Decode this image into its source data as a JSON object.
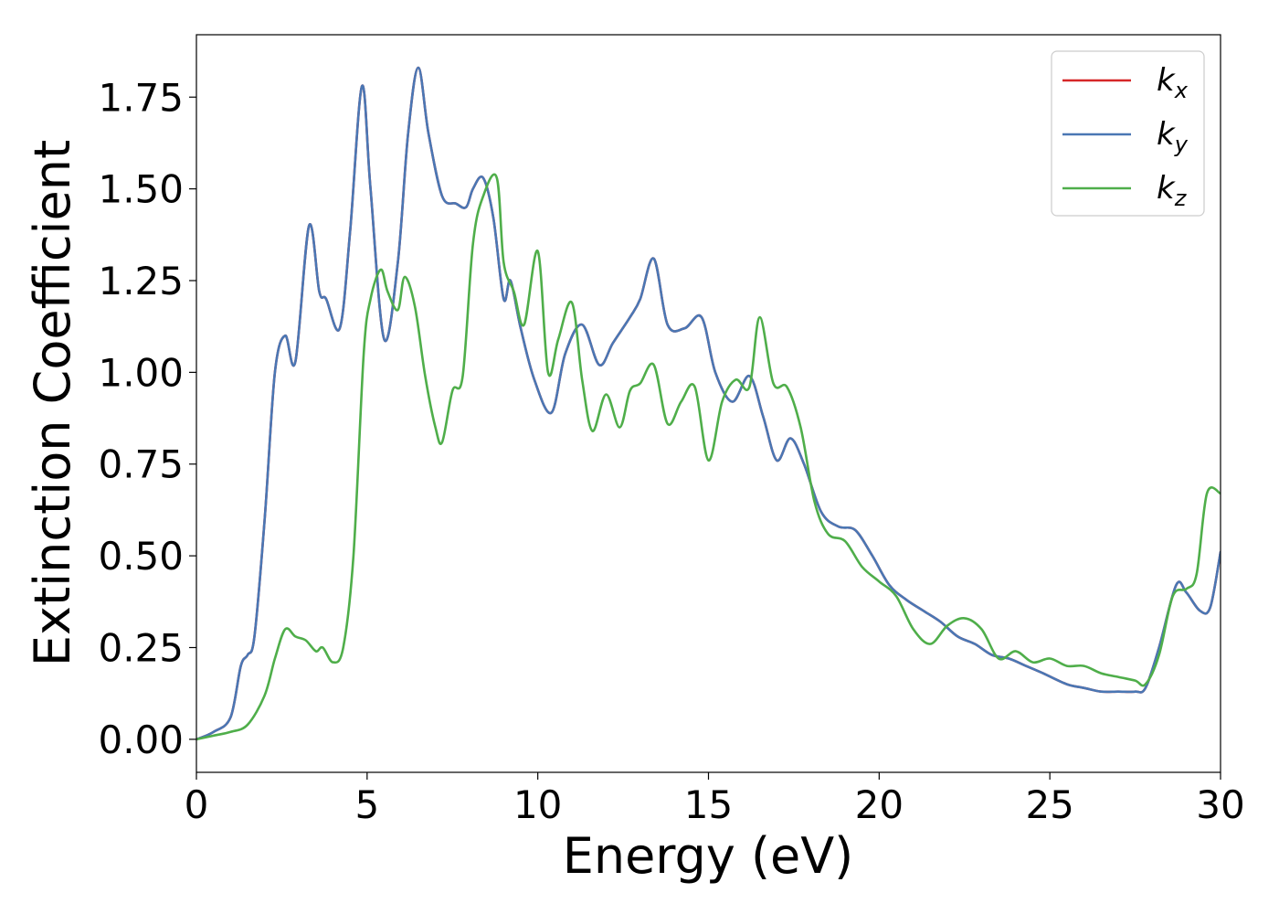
{
  "chart_data": {
    "type": "line",
    "title": "",
    "xlabel": "Energy (eV)",
    "ylabel": "Extinction Coefficient",
    "xlim": [
      0,
      30
    ],
    "ylim": [
      -0.09,
      1.92
    ],
    "xticks": [
      0,
      5,
      10,
      15,
      20,
      25,
      30
    ],
    "xtick_labels": [
      "0",
      "5",
      "10",
      "15",
      "20",
      "25",
      "30"
    ],
    "yticks": [
      0.0,
      0.25,
      0.5,
      0.75,
      1.0,
      1.25,
      1.5,
      1.75
    ],
    "ytick_labels": [
      "0.00",
      "0.25",
      "0.50",
      "0.75",
      "1.00",
      "1.25",
      "1.50",
      "1.75"
    ],
    "grid": false,
    "legend_position": "top-right",
    "series": [
      {
        "name": "kx",
        "label_main": "k",
        "label_sub": "x",
        "color": "#d62728",
        "x": [
          0,
          0.5,
          1.0,
          1.3,
          1.5,
          1.7,
          2.0,
          2.3,
          2.6,
          2.9,
          3.3,
          3.6,
          3.8,
          4.2,
          4.5,
          4.85,
          5.1,
          5.5,
          5.9,
          6.2,
          6.5,
          6.8,
          7.2,
          7.6,
          7.9,
          8.1,
          8.4,
          8.7,
          9.0,
          9.2,
          9.5,
          9.9,
          10.4,
          10.8,
          11.3,
          11.8,
          12.2,
          12.7,
          13.0,
          13.4,
          13.8,
          14.3,
          14.8,
          15.2,
          15.7,
          16.2,
          16.6,
          17.0,
          17.4,
          17.8,
          18.3,
          18.8,
          19.3,
          19.8,
          20.3,
          20.8,
          21.3,
          21.8,
          22.3,
          22.8,
          23.3,
          23.8,
          24.3,
          24.8,
          25.5,
          26.0,
          26.5,
          27.0,
          27.5,
          27.8,
          28.2,
          28.7,
          29.0,
          29.4,
          29.7,
          30.0
        ],
        "values": [
          0.0,
          0.02,
          0.06,
          0.2,
          0.23,
          0.28,
          0.6,
          1.0,
          1.1,
          1.03,
          1.4,
          1.22,
          1.2,
          1.12,
          1.38,
          1.78,
          1.5,
          1.09,
          1.3,
          1.65,
          1.83,
          1.65,
          1.48,
          1.46,
          1.45,
          1.5,
          1.53,
          1.42,
          1.2,
          1.25,
          1.12,
          0.98,
          0.89,
          1.05,
          1.13,
          1.02,
          1.08,
          1.15,
          1.2,
          1.31,
          1.13,
          1.12,
          1.15,
          1.0,
          0.92,
          0.99,
          0.88,
          0.76,
          0.82,
          0.75,
          0.62,
          0.58,
          0.57,
          0.5,
          0.42,
          0.38,
          0.35,
          0.32,
          0.28,
          0.26,
          0.23,
          0.22,
          0.2,
          0.18,
          0.15,
          0.14,
          0.13,
          0.13,
          0.13,
          0.14,
          0.25,
          0.42,
          0.4,
          0.35,
          0.36,
          0.51
        ]
      },
      {
        "name": "ky",
        "label_main": "k",
        "label_sub": "y",
        "color": "#4a77b4",
        "x": [
          0,
          0.5,
          1.0,
          1.3,
          1.5,
          1.7,
          2.0,
          2.3,
          2.6,
          2.9,
          3.3,
          3.6,
          3.8,
          4.2,
          4.5,
          4.85,
          5.1,
          5.5,
          5.9,
          6.2,
          6.5,
          6.8,
          7.2,
          7.6,
          7.9,
          8.1,
          8.4,
          8.7,
          9.0,
          9.2,
          9.5,
          9.9,
          10.4,
          10.8,
          11.3,
          11.8,
          12.2,
          12.7,
          13.0,
          13.4,
          13.8,
          14.3,
          14.8,
          15.2,
          15.7,
          16.2,
          16.6,
          17.0,
          17.4,
          17.8,
          18.3,
          18.8,
          19.3,
          19.8,
          20.3,
          20.8,
          21.3,
          21.8,
          22.3,
          22.8,
          23.3,
          23.8,
          24.3,
          24.8,
          25.5,
          26.0,
          26.5,
          27.0,
          27.5,
          27.8,
          28.2,
          28.7,
          29.0,
          29.4,
          29.7,
          30.0
        ],
        "values": [
          0.0,
          0.02,
          0.06,
          0.2,
          0.23,
          0.28,
          0.6,
          1.0,
          1.1,
          1.03,
          1.4,
          1.22,
          1.2,
          1.12,
          1.38,
          1.78,
          1.5,
          1.09,
          1.3,
          1.65,
          1.83,
          1.65,
          1.48,
          1.46,
          1.45,
          1.5,
          1.53,
          1.42,
          1.2,
          1.25,
          1.12,
          0.98,
          0.89,
          1.05,
          1.13,
          1.02,
          1.08,
          1.15,
          1.2,
          1.31,
          1.13,
          1.12,
          1.15,
          1.0,
          0.92,
          0.99,
          0.88,
          0.76,
          0.82,
          0.75,
          0.62,
          0.58,
          0.57,
          0.5,
          0.42,
          0.38,
          0.35,
          0.32,
          0.28,
          0.26,
          0.23,
          0.22,
          0.2,
          0.18,
          0.15,
          0.14,
          0.13,
          0.13,
          0.13,
          0.14,
          0.25,
          0.42,
          0.4,
          0.35,
          0.36,
          0.51
        ]
      },
      {
        "name": "kz",
        "label_main": "k",
        "label_sub": "z",
        "color": "#4fae4a",
        "x": [
          0,
          0.5,
          1.0,
          1.5,
          2.0,
          2.3,
          2.6,
          2.9,
          3.2,
          3.5,
          3.7,
          4.0,
          4.3,
          4.6,
          4.9,
          5.1,
          5.4,
          5.6,
          5.9,
          6.1,
          6.4,
          6.7,
          7.0,
          7.2,
          7.5,
          7.8,
          8.1,
          8.4,
          8.8,
          9.0,
          9.3,
          9.6,
          10.0,
          10.3,
          10.6,
          11.0,
          11.3,
          11.6,
          12.0,
          12.4,
          12.7,
          13.0,
          13.4,
          13.8,
          14.2,
          14.6,
          15.0,
          15.4,
          15.8,
          16.2,
          16.5,
          16.9,
          17.3,
          17.7,
          18.1,
          18.5,
          19.0,
          19.5,
          20.0,
          20.5,
          21.0,
          21.5,
          22.0,
          22.5,
          23.0,
          23.5,
          24.0,
          24.5,
          25.0,
          25.5,
          26.0,
          26.5,
          27.0,
          27.5,
          27.8,
          28.2,
          28.6,
          29.0,
          29.3,
          29.6,
          30.0
        ],
        "values": [
          0.0,
          0.01,
          0.02,
          0.04,
          0.12,
          0.22,
          0.3,
          0.28,
          0.27,
          0.24,
          0.25,
          0.21,
          0.25,
          0.5,
          1.05,
          1.2,
          1.28,
          1.22,
          1.17,
          1.26,
          1.18,
          0.99,
          0.85,
          0.81,
          0.95,
          0.99,
          1.35,
          1.48,
          1.53,
          1.3,
          1.22,
          1.13,
          1.33,
          1.0,
          1.09,
          1.19,
          0.98,
          0.84,
          0.94,
          0.85,
          0.95,
          0.97,
          1.02,
          0.86,
          0.92,
          0.96,
          0.76,
          0.92,
          0.98,
          0.96,
          1.15,
          0.97,
          0.96,
          0.85,
          0.65,
          0.56,
          0.54,
          0.47,
          0.43,
          0.39,
          0.3,
          0.26,
          0.31,
          0.33,
          0.3,
          0.22,
          0.24,
          0.21,
          0.22,
          0.2,
          0.2,
          0.18,
          0.17,
          0.16,
          0.15,
          0.23,
          0.39,
          0.41,
          0.45,
          0.67,
          0.67
        ]
      }
    ]
  }
}
